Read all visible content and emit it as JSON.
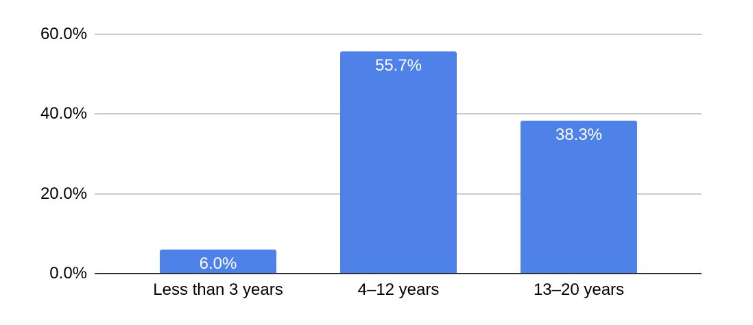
{
  "chart_data": {
    "type": "bar",
    "title": "",
    "xlabel": "",
    "ylabel": "",
    "categories": [
      "Less than 3 years",
      "4–12 years",
      "13–20 years"
    ],
    "values": [
      6.0,
      55.7,
      38.3
    ],
    "value_labels": [
      "6.0%",
      "55.7%",
      "38.3%"
    ],
    "ylim": [
      0,
      60
    ],
    "yticks": [
      {
        "value": 0,
        "label": "0.0%"
      },
      {
        "value": 20,
        "label": "20.0%"
      },
      {
        "value": 40,
        "label": "40.0%"
      },
      {
        "value": 60,
        "label": "60.0%"
      }
    ],
    "grid": true,
    "legend": "none",
    "colors": {
      "bar": "#4e82e9",
      "value_label": "#ffffff",
      "gridline": "#cccccc",
      "axis_line": "#333333",
      "tick_text": "#000000",
      "background": "#ffffff"
    }
  }
}
